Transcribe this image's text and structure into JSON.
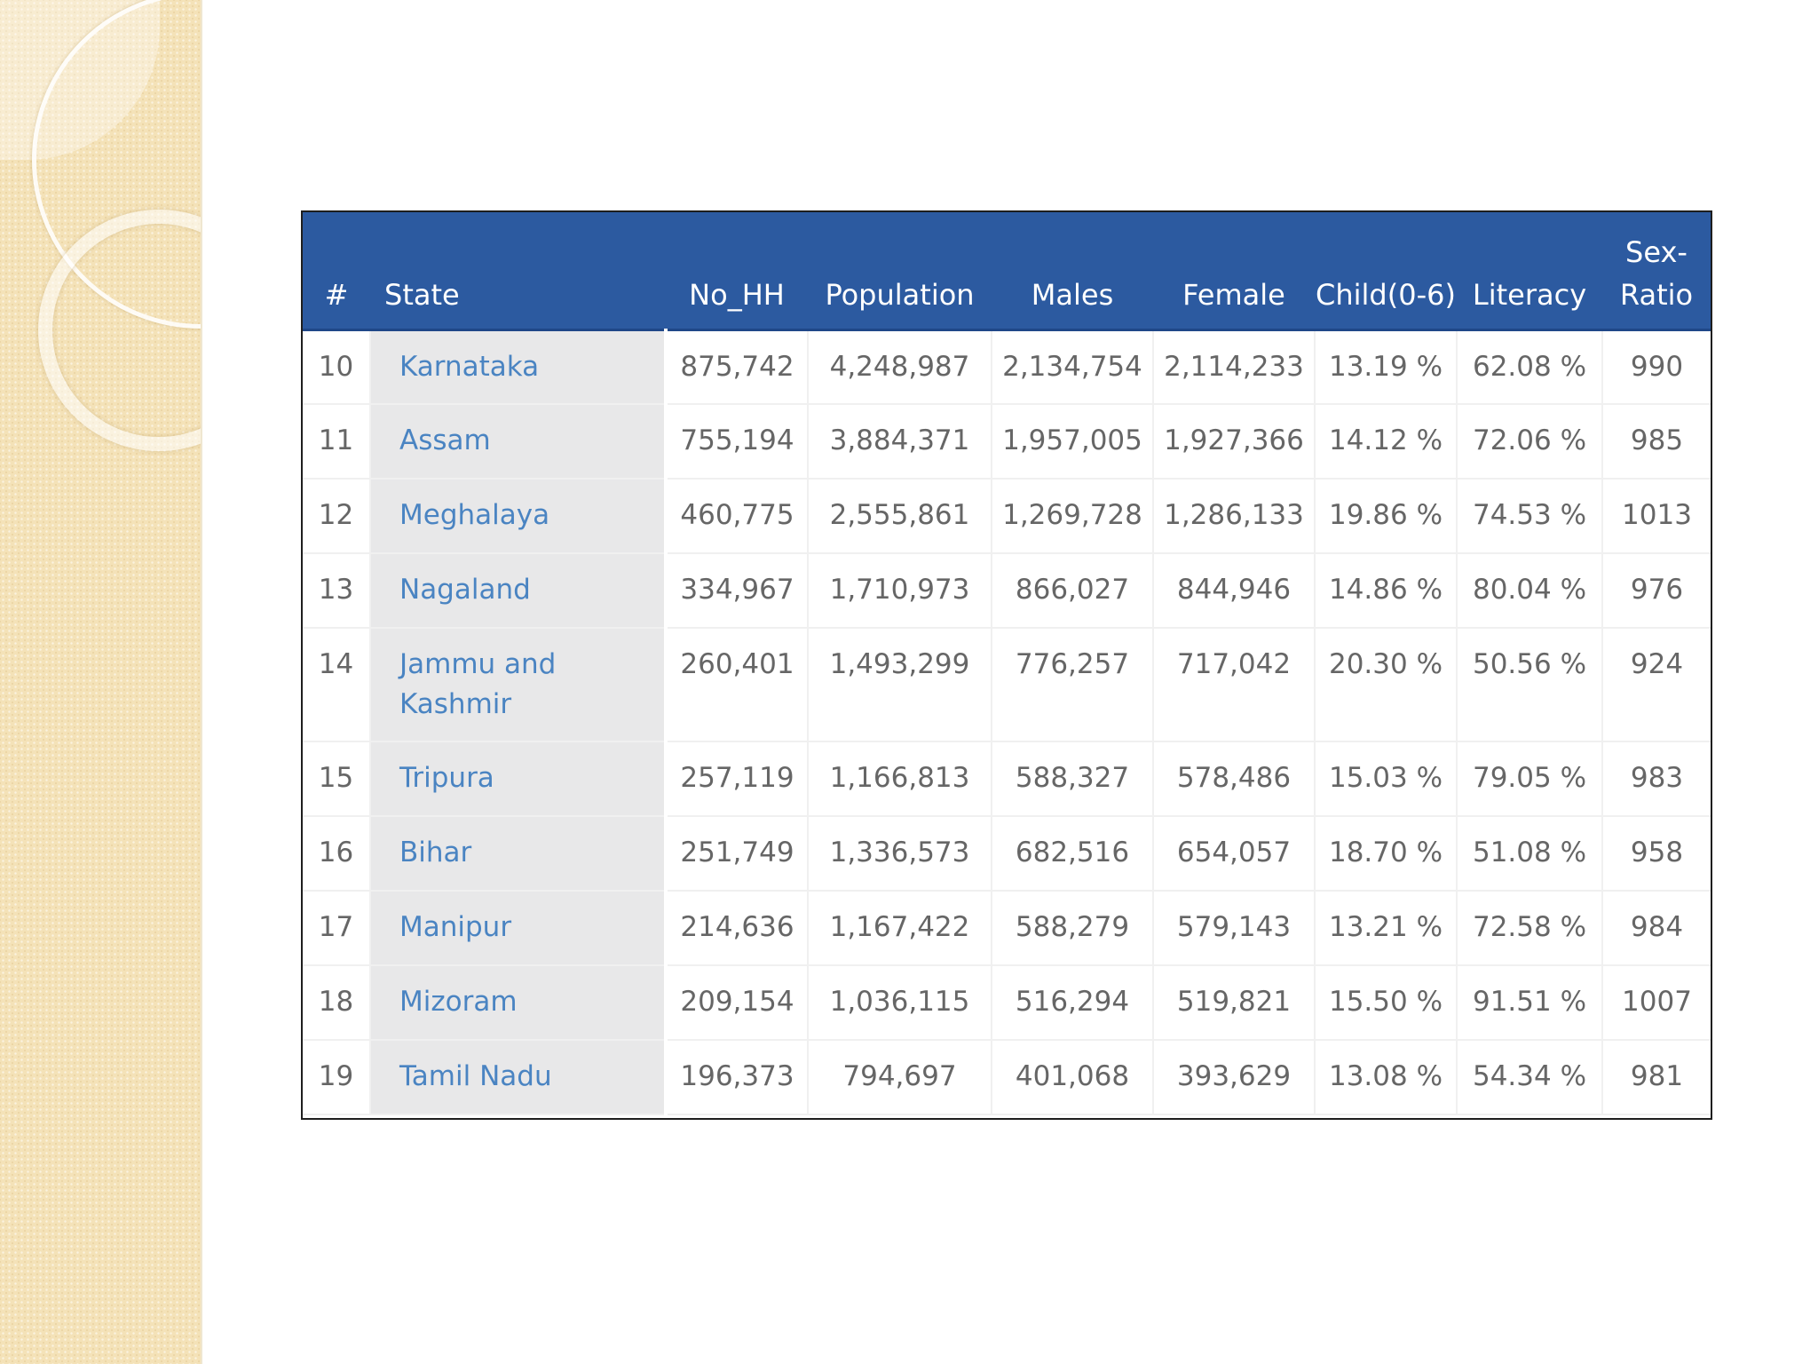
{
  "table": {
    "columns": [
      "#",
      "State",
      "No_HH",
      "Population",
      "Males",
      "Female",
      "Child(0-6)",
      "Literacy",
      "Sex-Ratio"
    ],
    "rows": [
      [
        "10",
        "Karnataka",
        "875,742",
        "4,248,987",
        "2,134,754",
        "2,114,233",
        "13.19 %",
        "62.08 %",
        "990"
      ],
      [
        "11",
        "Assam",
        "755,194",
        "3,884,371",
        "1,957,005",
        "1,927,366",
        "14.12 %",
        "72.06 %",
        "985"
      ],
      [
        "12",
        "Meghalaya",
        "460,775",
        "2,555,861",
        "1,269,728",
        "1,286,133",
        "19.86 %",
        "74.53 %",
        "1013"
      ],
      [
        "13",
        "Nagaland",
        "334,967",
        "1,710,973",
        "866,027",
        "844,946",
        "14.86 %",
        "80.04 %",
        "976"
      ],
      [
        "14",
        "Jammu and Kashmir",
        "260,401",
        "1,493,299",
        "776,257",
        "717,042",
        "20.30 %",
        "50.56 %",
        "924"
      ],
      [
        "15",
        "Tripura",
        "257,119",
        "1,166,813",
        "588,327",
        "578,486",
        "15.03 %",
        "79.05 %",
        "983"
      ],
      [
        "16",
        "Bihar",
        "251,749",
        "1,336,573",
        "682,516",
        "654,057",
        "18.70 %",
        "51.08 %",
        "958"
      ],
      [
        "17",
        "Manipur",
        "214,636",
        "1,167,422",
        "588,279",
        "579,143",
        "13.21 %",
        "72.58 %",
        "984"
      ],
      [
        "18",
        "Mizoram",
        "209,154",
        "1,036,115",
        "516,294",
        "519,821",
        "15.50 %",
        "91.51 %",
        "1007"
      ],
      [
        "19",
        "Tamil Nadu",
        "196,373",
        "794,697",
        "401,068",
        "393,629",
        "13.08 %",
        "54.34 %",
        "981"
      ]
    ]
  },
  "colors": {
    "header_bg": "#2c5aa0",
    "header_text": "#ffffff",
    "state_link": "#4a84c2",
    "state_bg": "#e8e8e9",
    "cell_text": "#666666",
    "side_panel": "#f4e2b8"
  }
}
